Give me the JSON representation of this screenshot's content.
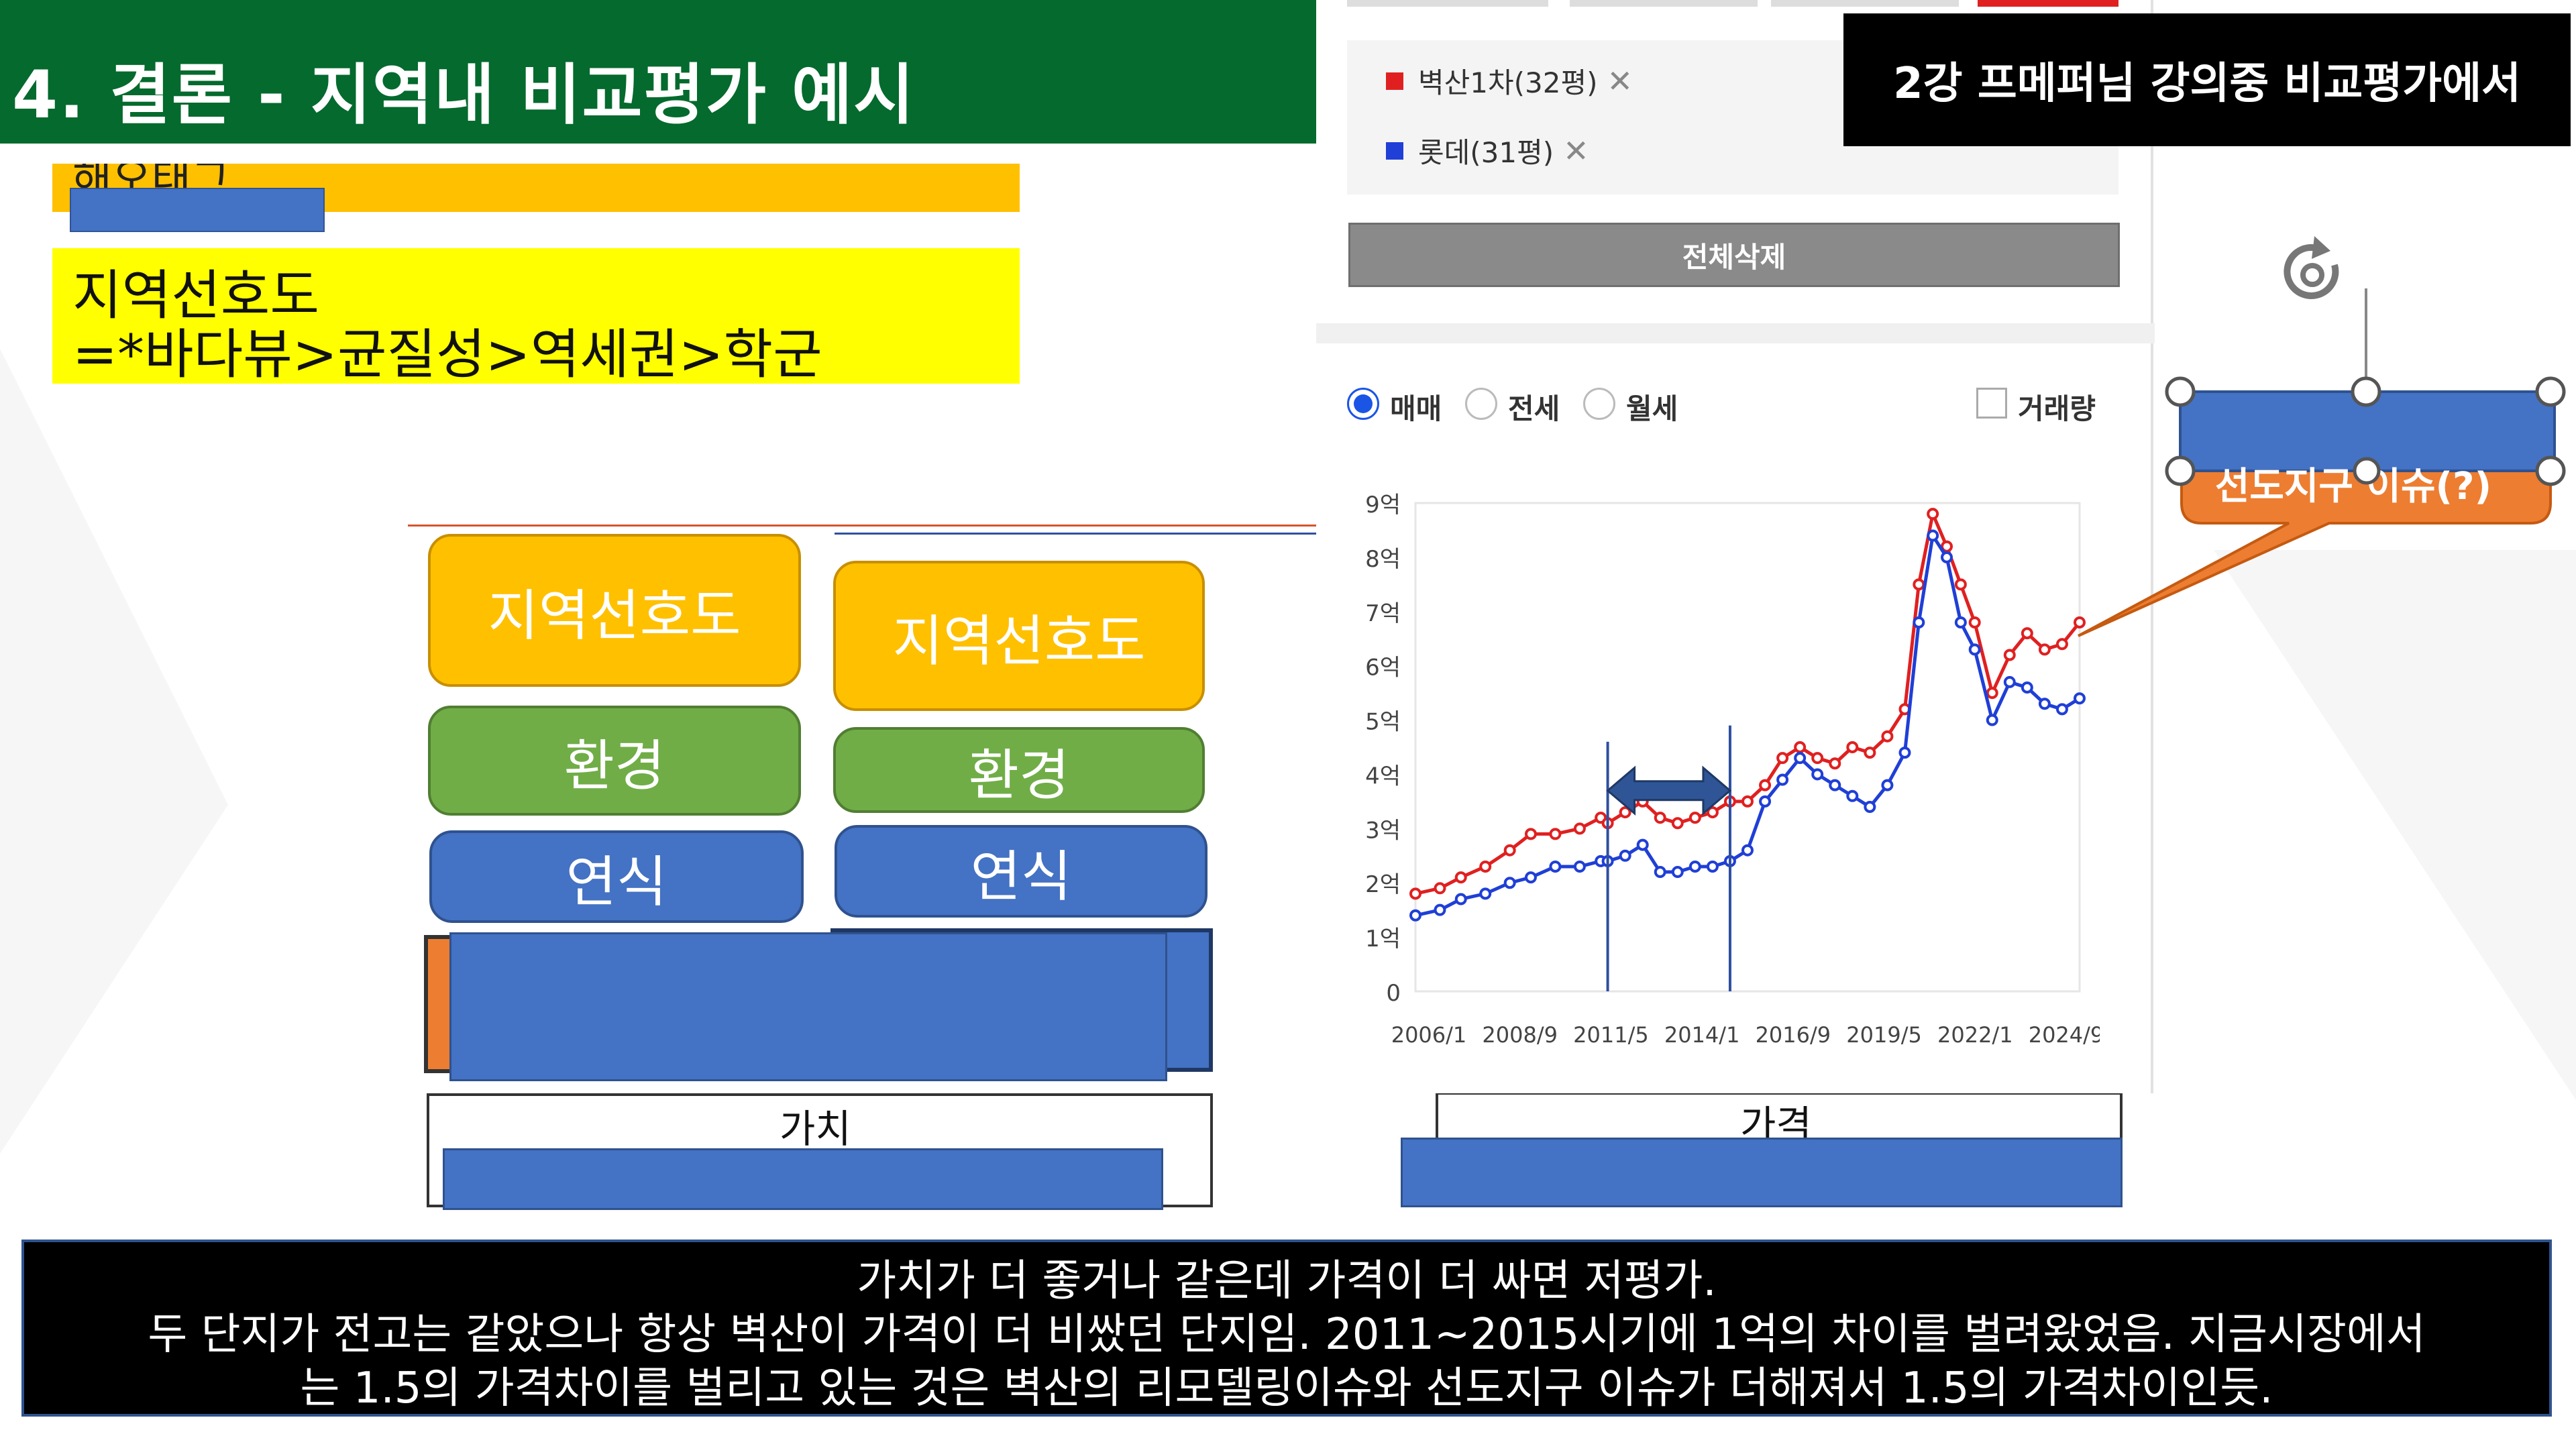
{
  "slide": {
    "title": "4. 결론 -  지역내 비교평가 예시",
    "tag_partial": "해오태그",
    "preference_title": "지역선호도",
    "preference_formula": "=*바다뷰>균질성>역세권>학군"
  },
  "stack_left": {
    "pref": "지역선호도",
    "env": "환경",
    "age": "연식",
    "frame_label": "가치"
  },
  "stack_right": {
    "pref": "지역선호도",
    "env": "환경",
    "age": "연식"
  },
  "price_label": "가격",
  "panel": {
    "selected": [
      {
        "label": "벽산1차(32평)",
        "color": "#e02020"
      },
      {
        "label": "롯데(31평)",
        "color": "#1f3fd6"
      }
    ],
    "remove_glyph": "✕",
    "delete_all": "전체삭제",
    "radios": [
      {
        "label": "매매",
        "checked": true
      },
      {
        "label": "전세",
        "checked": false
      },
      {
        "label": "월세",
        "checked": false
      }
    ],
    "volume_label": "거래량"
  },
  "banner": "2강 프메퍼님 강의중 비교평가에서",
  "callout": "선도지구 이슈(?)",
  "bottom_text": [
    "가치가 더 좋거나 같은데 가격이 더 싸면 저평가.",
    "두 단지가 전고는 같았으나 항상 벽산이 가격이 더 비쌌던 단지임.  2011~2015시기에 1억의 차이를 벌려왔었음. 지금시장에서",
    "는 1.5의 가격차이를 벌리고 있는 것은 벽산의 리모델링이슈와 선도지구 이슈가 더해져서 1.5의 가격차이인듯."
  ],
  "chart_data": {
    "type": "line",
    "y_tick_labels": [
      "0",
      "1억",
      "2억",
      "3억",
      "4억",
      "5억",
      "6억",
      "7억",
      "8억",
      "9억"
    ],
    "ylim": [
      0,
      9
    ],
    "ylabel_unit": "억",
    "x_tick_labels": [
      "2006/1",
      "2008/9",
      "2011/5",
      "2014/1",
      "2016/9",
      "2019/5",
      "2022/1",
      "2024/9"
    ],
    "x": [
      2006.0,
      2006.7,
      2007.3,
      2008.0,
      2008.7,
      2009.3,
      2010.0,
      2010.7,
      2011.3,
      2011.5,
      2012.0,
      2012.5,
      2013.0,
      2013.5,
      2014.0,
      2014.5,
      2015.0,
      2015.5,
      2016.0,
      2016.5,
      2017.0,
      2017.5,
      2018.0,
      2018.5,
      2019.0,
      2019.5,
      2020.0,
      2020.4,
      2020.8,
      2021.2,
      2021.6,
      2022.0,
      2022.5,
      2023.0,
      2023.5,
      2024.0,
      2024.5,
      2025.0
    ],
    "series": [
      {
        "name": "벽산1차(32평)",
        "color": "#e02020",
        "values": [
          1.8,
          1.9,
          2.1,
          2.3,
          2.6,
          2.9,
          2.9,
          3.0,
          3.2,
          3.1,
          3.3,
          3.5,
          3.2,
          3.1,
          3.2,
          3.3,
          3.5,
          3.5,
          3.8,
          4.3,
          4.5,
          4.3,
          4.2,
          4.5,
          4.4,
          4.7,
          5.2,
          7.5,
          8.8,
          8.2,
          7.5,
          6.8,
          5.5,
          6.2,
          6.6,
          6.3,
          6.4,
          6.8
        ]
      },
      {
        "name": "롯데(31평)",
        "color": "#1f3fd6",
        "values": [
          1.4,
          1.5,
          1.7,
          1.8,
          2.0,
          2.1,
          2.3,
          2.3,
          2.4,
          2.4,
          2.5,
          2.7,
          2.2,
          2.2,
          2.3,
          2.3,
          2.4,
          2.6,
          3.5,
          3.9,
          4.3,
          4.0,
          3.8,
          3.6,
          3.4,
          3.8,
          4.4,
          6.8,
          8.4,
          8.0,
          6.8,
          6.3,
          5.0,
          5.7,
          5.6,
          5.3,
          5.2,
          5.4
        ]
      }
    ],
    "annotation": "↔"
  }
}
